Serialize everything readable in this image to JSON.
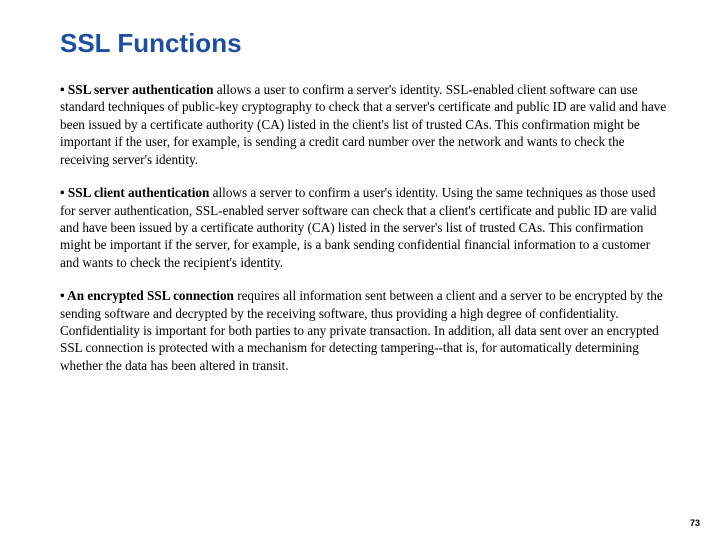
{
  "title": "SSL Functions",
  "paragraphs": [
    {
      "lead": "• SSL server authentication",
      "body": " allows a user to confirm a server's identity. SSL-enabled client software can use standard techniques of public-key cryptography to check that a server's certificate and public ID are valid and have been issued by a certificate authority (CA) listed in the client's list of trusted CAs. This confirmation might be important if the user, for example, is sending a credit card number over the network and wants to check the receiving server's identity."
    },
    {
      "lead": "• SSL client authentication",
      "body": " allows a server to confirm a user's identity. Using the same techniques as those used for server authentication, SSL-enabled server software can check that a client's certificate and public ID are valid and have been issued by a certificate authority (CA) listed in the server's list of trusted CAs. This confirmation might be important if the server, for example, is a bank sending confidential financial information to a customer and wants to check the recipient's identity."
    },
    {
      "lead": "• An encrypted SSL connection",
      "body": " requires all information sent between a client and a server to be encrypted by the sending software and decrypted by the receiving software, thus providing a high degree of confidentiality. Confidentiality is important for both parties to any private transaction. In addition, all data sent over an encrypted SSL connection is protected with a mechanism for detecting tampering--that is, for automatically determining whether the data has been altered in transit."
    }
  ],
  "page_number": "73",
  "colors": {
    "title": "#1f4e9c",
    "text": "#000000",
    "background": "#ffffff"
  },
  "typography": {
    "title_fontsize": 26,
    "body_fontsize": 13.2,
    "title_family": "Arial",
    "body_family": "Georgia"
  }
}
